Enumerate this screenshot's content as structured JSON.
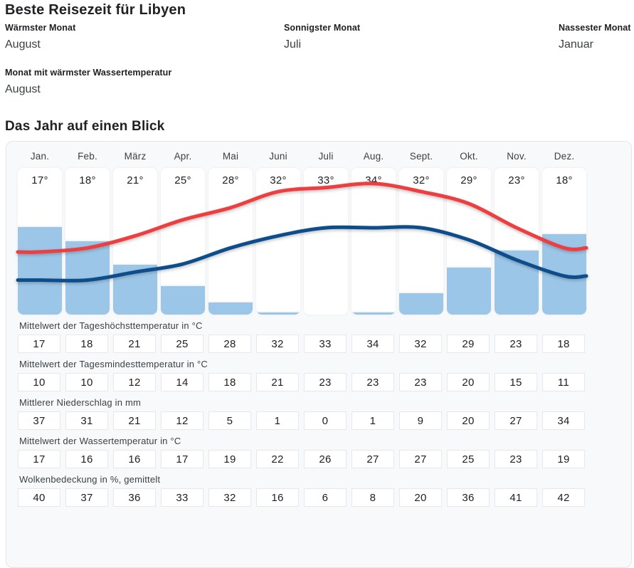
{
  "header": {
    "title": "Beste Reisezeit für Libyen",
    "stats": [
      {
        "label": "Wärmster Monat",
        "value": "August"
      },
      {
        "label": "Sonnigster Monat",
        "value": "Juli"
      },
      {
        "label": "Nassester Monat",
        "value": "Januar"
      },
      {
        "label": "Monat mit wärmster Wassertemperatur",
        "value": "August"
      }
    ]
  },
  "section_title": "Das Jahr auf einen Blick",
  "chart_data": {
    "type": "line",
    "categories": [
      "Jan.",
      "Feb.",
      "März",
      "Apr.",
      "Mai",
      "Juni",
      "Juli",
      "Aug.",
      "Sept.",
      "Okt.",
      "Nov.",
      "Dez."
    ],
    "card_temp_labels": [
      "17°",
      "18°",
      "21°",
      "25°",
      "28°",
      "32°",
      "33°",
      "34°",
      "32°",
      "29°",
      "23°",
      "18°"
    ],
    "series": [
      {
        "name": "Mittelwert der Tageshöchsttemperatur in °C",
        "type": "line",
        "color": "#ee3e40",
        "values": [
          17,
          18,
          21,
          25,
          28,
          32,
          33,
          34,
          32,
          29,
          23,
          18
        ]
      },
      {
        "name": "Mittelwert der Tagesmindesttemperatur in °C",
        "type": "line",
        "color": "#0d4d8c",
        "values": [
          10,
          10,
          12,
          14,
          18,
          21,
          23,
          23,
          23,
          20,
          15,
          11
        ]
      },
      {
        "name": "Mittlerer Niederschlag in mm",
        "type": "bar",
        "color": "#9cc6e8",
        "values": [
          37,
          31,
          21,
          12,
          5,
          1,
          0,
          1,
          9,
          20,
          27,
          34
        ]
      }
    ],
    "legend_position": "none",
    "grid": false
  },
  "tables": [
    {
      "label": "Mittelwert der Tageshöchsttemperatur in °C",
      "values": [
        17,
        18,
        21,
        25,
        28,
        32,
        33,
        34,
        32,
        29,
        23,
        18
      ]
    },
    {
      "label": "Mittelwert der Tagesmindesttemperatur in °C",
      "values": [
        10,
        10,
        12,
        14,
        18,
        21,
        23,
        23,
        23,
        20,
        15,
        11
      ]
    },
    {
      "label": "Mittlerer Niederschlag in mm",
      "values": [
        37,
        31,
        21,
        12,
        5,
        1,
        0,
        1,
        9,
        20,
        27,
        34
      ]
    },
    {
      "label": "Mittelwert der Wassertemperatur in °C",
      "values": [
        17,
        16,
        16,
        17,
        19,
        22,
        26,
        27,
        27,
        25,
        23,
        19
      ]
    },
    {
      "label": "Wolkenbedeckung in %, gemittelt",
      "values": [
        40,
        37,
        36,
        33,
        32,
        16,
        6,
        8,
        20,
        36,
        41,
        42
      ]
    }
  ]
}
